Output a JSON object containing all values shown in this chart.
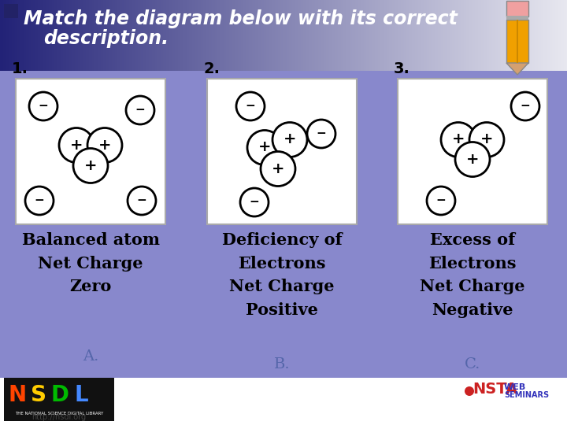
{
  "bg_color": "#ffffff",
  "header_top_color": "#1a1a6e",
  "header_bottom_color": "#e0e0f0",
  "panel_color": "#8888cc",
  "title_text_line1": "Match the diagram below with its correct",
  "title_text_line2": "description.",
  "title_fontsize": 17,
  "title_color": "#ffffff",
  "box_bg": "#ffffff",
  "numbers": [
    "1.",
    "2.",
    "3."
  ],
  "labels_a": [
    "Balanced atom",
    "Net Charge",
    "Zero"
  ],
  "label_a": "A.",
  "labels_b": [
    "Deficiency of",
    "Electrons",
    "Net Charge",
    "Positive"
  ],
  "label_b": "B.",
  "labels_c": [
    "Excess of",
    "Electrons",
    "Net Charge",
    "Negative"
  ],
  "label_c": "C.",
  "text_color": "#000000",
  "desc_color": "#000000",
  "desc_fontsize": 15,
  "letter_color": "#5566aa",
  "letter_fontsize": 14
}
